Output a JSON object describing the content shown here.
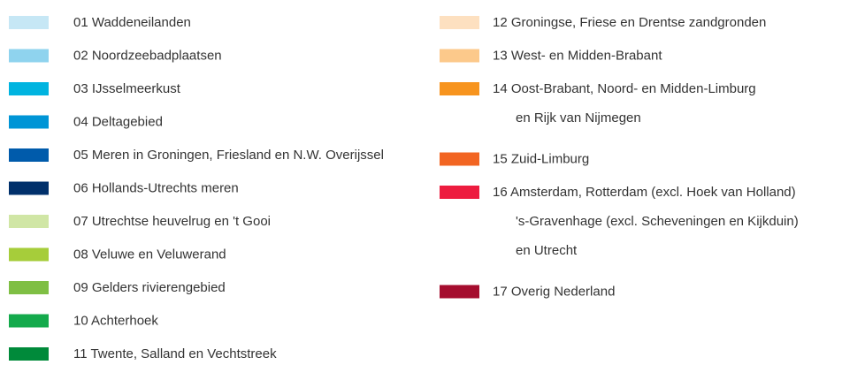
{
  "legend": {
    "columns": [
      {
        "items": [
          {
            "label": [
              "01 Waddeneilanden"
            ],
            "color": "#c6e7f5"
          },
          {
            "label": [
              "02 Noordzeebadplaatsen"
            ],
            "color": "#8fd3ee"
          },
          {
            "label": [
              "03 IJsselmeerkust"
            ],
            "color": "#00b4e0"
          },
          {
            "label": [
              "04 Deltagebied"
            ],
            "color": "#0095d6"
          },
          {
            "label": [
              "05 Meren in Groningen, Friesland en N.W. Overijssel"
            ],
            "color": "#005bab"
          },
          {
            "label": [
              "06 Hollands-Utrechts meren"
            ],
            "color": "#00306b"
          },
          {
            "label": [
              "07 Utrechtse heuvelrug en 't Gooi"
            ],
            "color": "#d0e6a5"
          },
          {
            "label": [
              "08 Veluwe en Veluwerand"
            ],
            "color": "#a6cd3a"
          },
          {
            "label": [
              "09 Gelders rivierengebied"
            ],
            "color": "#7fbf44"
          },
          {
            "label": [
              "10 Achterhoek"
            ],
            "color": "#14aa4c"
          },
          {
            "label": [
              "11 Twente, Salland en Vechtstreek"
            ],
            "color": "#008a3a"
          }
        ]
      },
      {
        "items": [
          {
            "label": [
              "12 Groningse, Friese en Drentse zandgronden"
            ],
            "color": "#fde0c0"
          },
          {
            "label": [
              "13 West- en Midden-Brabant"
            ],
            "color": "#fcc98b"
          },
          {
            "label": [
              "14 Oost-Brabant, Noord- en Midden-Limburg",
              "en Rijk van Nijmegen"
            ],
            "color": "#f7941e"
          },
          {
            "label": [
              "15 Zuid-Limburg"
            ],
            "color": "#f26522"
          },
          {
            "label": [
              "16 Amsterdam, Rotterdam (excl. Hoek van Holland)",
              "'s-Gravenhage (excl. Scheveningen en Kijkduin)",
              "en Utrecht"
            ],
            "color": "#ed1c3f"
          },
          {
            "label": [
              "17 Overig Nederland"
            ],
            "color": "#a50d2e"
          }
        ]
      }
    ]
  }
}
